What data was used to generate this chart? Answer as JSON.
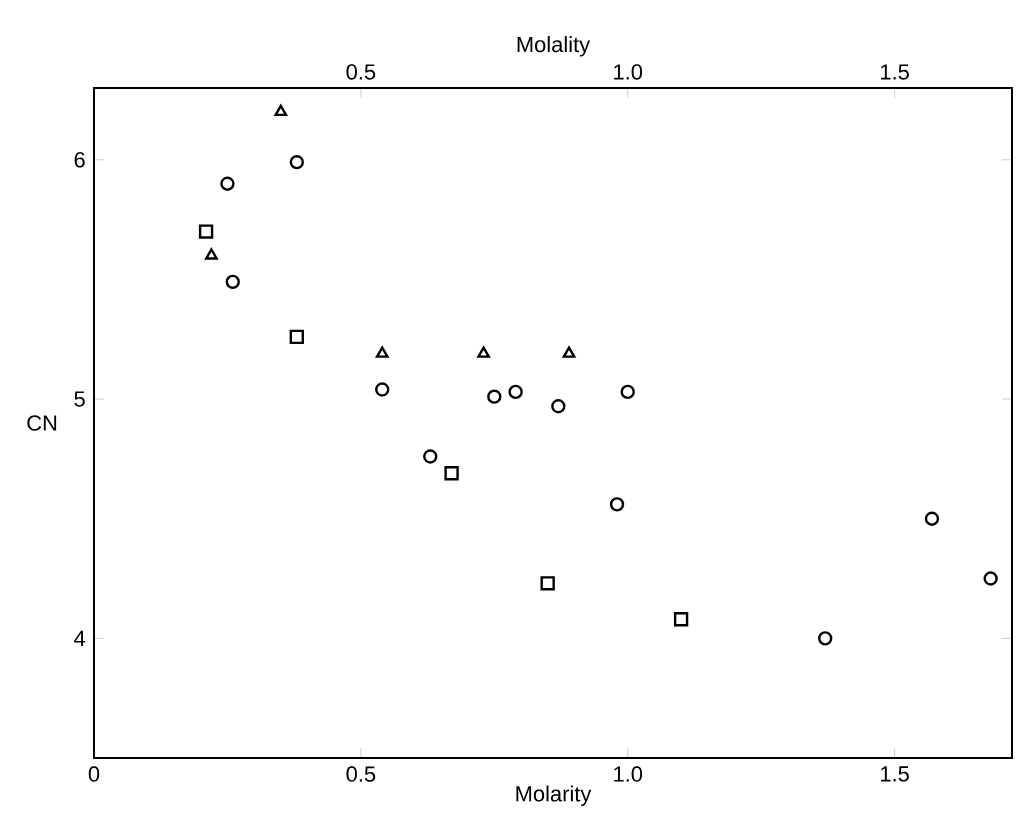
{
  "chart_data": {
    "type": "scatter",
    "xlabel": "Molarity",
    "ylabel": "CN",
    "x2label": "Molality",
    "xlim": [
      0,
      1.72
    ],
    "ylim": [
      3.5,
      6.3
    ],
    "xticks": [
      0,
      0.5,
      {
        "value": 1,
        "label": "1.0"
      },
      1.5
    ],
    "x2lim": [
      0,
      1.72
    ],
    "x2ticks": [
      0.5,
      {
        "value": 1,
        "label": "1.0"
      },
      1.5
    ],
    "yticks": [
      4,
      5,
      6
    ],
    "series": [
      {
        "color": "#000000",
        "marker": "square",
        "x": [
          0.21,
          0.38,
          0.67,
          0.85,
          1.1
        ],
        "values": [
          5.7,
          5.26,
          4.69,
          4.23,
          4.08
        ]
      },
      {
        "color": "#000000",
        "marker": "circle",
        "x": [
          0.25,
          0.26,
          0.38,
          0.54,
          0.63,
          0.75,
          0.79,
          0.87,
          0.98,
          1.0,
          1.37,
          1.57,
          1.68
        ],
        "values": [
          5.9,
          5.49,
          5.99,
          5.04,
          4.76,
          5.01,
          5.03,
          4.97,
          4.56,
          5.03,
          4.0,
          4.5,
          4.25
        ]
      },
      {
        "color": "#000000",
        "marker": "triangle",
        "x": [
          0.22,
          0.35,
          0.54,
          0.73,
          0.89
        ],
        "values": [
          5.6,
          6.2,
          5.19,
          5.19,
          5.19
        ]
      }
    ]
  }
}
